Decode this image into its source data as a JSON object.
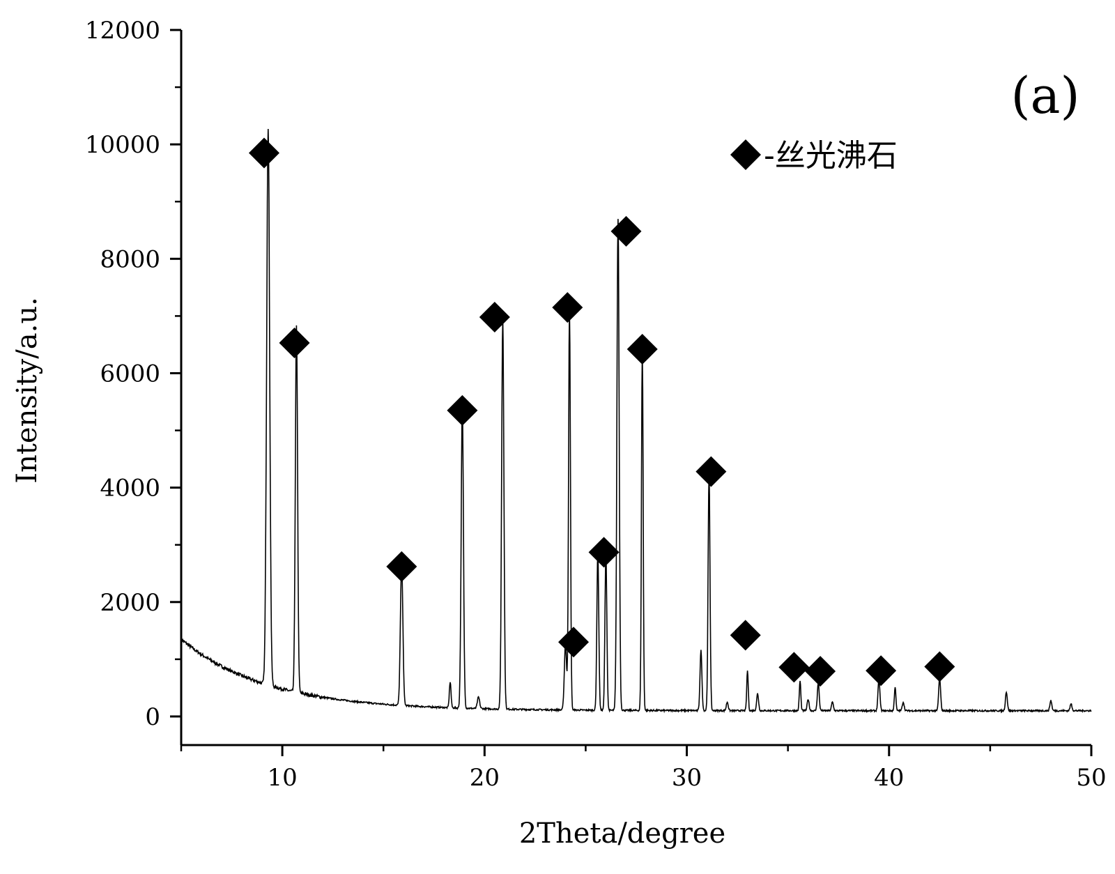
{
  "chart_data": {
    "type": "line",
    "xlabel": "2Theta/degree",
    "ylabel": "Intensity/a.u.",
    "xlim": [
      5,
      50
    ],
    "ylim": [
      -500,
      12000
    ],
    "x_ticks": [
      10,
      20,
      30,
      40,
      50
    ],
    "y_ticks": [
      0,
      2000,
      4000,
      6000,
      8000,
      10000,
      12000
    ],
    "panel_label": "(a)",
    "legend": {
      "marker": "diamond",
      "label": "-丝光沸石",
      "position": "top-right"
    },
    "grid": false,
    "background_start": 1350,
    "baseline_end": 100,
    "peaks": [
      {
        "x": 9.3,
        "y": 9750,
        "w": 0.16
      },
      {
        "x": 10.7,
        "y": 6400,
        "w": 0.12
      },
      {
        "x": 15.9,
        "y": 2500,
        "w": 0.13
      },
      {
        "x": 18.3,
        "y": 450,
        "w": 0.09
      },
      {
        "x": 18.9,
        "y": 5250,
        "w": 0.12
      },
      {
        "x": 19.7,
        "y": 200,
        "w": 0.12
      },
      {
        "x": 20.9,
        "y": 6850,
        "w": 0.12
      },
      {
        "x": 24.0,
        "y": 1150,
        "w": 0.12
      },
      {
        "x": 24.2,
        "y": 7000,
        "w": 0.1
      },
      {
        "x": 25.6,
        "y": 2800,
        "w": 0.1
      },
      {
        "x": 26.0,
        "y": 2750,
        "w": 0.1
      },
      {
        "x": 26.6,
        "y": 8600,
        "w": 0.12
      },
      {
        "x": 27.8,
        "y": 6300,
        "w": 0.09
      },
      {
        "x": 30.7,
        "y": 1050,
        "w": 0.1
      },
      {
        "x": 31.1,
        "y": 4150,
        "w": 0.1
      },
      {
        "x": 32.0,
        "y": 150,
        "w": 0.1
      },
      {
        "x": 33.0,
        "y": 700,
        "w": 0.08
      },
      {
        "x": 33.5,
        "y": 300,
        "w": 0.1
      },
      {
        "x": 35.6,
        "y": 520,
        "w": 0.08
      },
      {
        "x": 36.0,
        "y": 200,
        "w": 0.1
      },
      {
        "x": 36.5,
        "y": 480,
        "w": 0.1
      },
      {
        "x": 37.2,
        "y": 150,
        "w": 0.1
      },
      {
        "x": 39.5,
        "y": 550,
        "w": 0.1
      },
      {
        "x": 40.3,
        "y": 420,
        "w": 0.08
      },
      {
        "x": 40.7,
        "y": 150,
        "w": 0.1
      },
      {
        "x": 42.5,
        "y": 580,
        "w": 0.1
      },
      {
        "x": 45.8,
        "y": 330,
        "w": 0.1
      },
      {
        "x": 48.0,
        "y": 180,
        "w": 0.1
      },
      {
        "x": 49.0,
        "y": 120,
        "w": 0.1
      }
    ],
    "markers": [
      {
        "x": 9.1,
        "y": 9850
      },
      {
        "x": 10.6,
        "y": 6530
      },
      {
        "x": 15.9,
        "y": 2620
      },
      {
        "x": 18.9,
        "y": 5350
      },
      {
        "x": 20.5,
        "y": 6980
      },
      {
        "x": 24.1,
        "y": 7150
      },
      {
        "x": 24.4,
        "y": 1300
      },
      {
        "x": 25.9,
        "y": 2870
      },
      {
        "x": 27.0,
        "y": 8480
      },
      {
        "x": 27.8,
        "y": 6420
      },
      {
        "x": 31.2,
        "y": 4280
      },
      {
        "x": 32.9,
        "y": 1420
      },
      {
        "x": 35.3,
        "y": 860
      },
      {
        "x": 36.6,
        "y": 790
      },
      {
        "x": 39.6,
        "y": 800
      },
      {
        "x": 42.5,
        "y": 870
      }
    ]
  }
}
